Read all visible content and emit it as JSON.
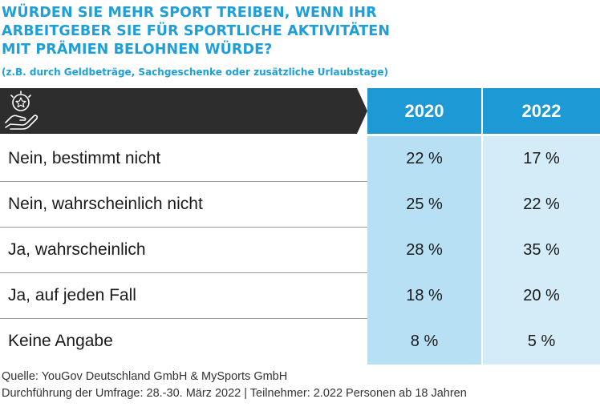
{
  "title_lines": [
    "WÜRDEN SIE MEHR SPORT TREIBEN, WENN IHR",
    "ARBEITGEBER SIE FÜR SPORTLICHE AKTIVITÄTEN",
    "MIT PRÄMIEN BELOHNEN WÜRDE?"
  ],
  "subtitle": "(z.B. durch Geldbeträge, Sachgeschenke oder zusätzliche Urlaubstage)",
  "header_icon": "hand-star-award-icon",
  "source_lines": [
    "Quelle: YouGov Deutschland GmbH & MySports GmbH",
    "Durchführung der Umfrage: 28.-30. März 2022 | Teilnehmer: 2.022 Personen ab 18 Jahren"
  ],
  "colors": {
    "title": "#1e9fd8",
    "header_dark": "#2d2d2d",
    "header_blue": "#1d9ad6",
    "col_2020": "#b8e0f4",
    "col_2022": "#d4ecf8"
  },
  "chart_data": {
    "type": "table",
    "title": "WÜRDEN SIE MEHR SPORT TREIBEN, WENN IHR ARBEITGEBER SIE FÜR SPORTLICHE AKTIVITÄTEN MIT PRÄMIEN BELOHNEN WÜRDE?",
    "subtitle": "(z.B. durch Geldbeträge, Sachgeschenke oder zusätzliche Urlaubstage)",
    "columns": [
      "2020",
      "2022"
    ],
    "rows": [
      {
        "label": "Nein, bestimmt nicht",
        "values": [
          "22 %",
          "17 %"
        ]
      },
      {
        "label": "Nein, wahrscheinlich nicht",
        "values": [
          "25 %",
          "22 %"
        ]
      },
      {
        "label": "Ja, wahrscheinlich",
        "values": [
          "28 %",
          "35 %"
        ]
      },
      {
        "label": "Ja, auf jeden Fall",
        "values": [
          "18 %",
          "20 %"
        ]
      },
      {
        "label": "Keine Angabe",
        "values": [
          "8 %",
          "5 %"
        ]
      }
    ],
    "series": [
      {
        "name": "2020",
        "values": [
          22,
          25,
          28,
          18,
          8
        ]
      },
      {
        "name": "2022",
        "values": [
          17,
          22,
          35,
          20,
          5
        ]
      }
    ],
    "unit": "%"
  }
}
